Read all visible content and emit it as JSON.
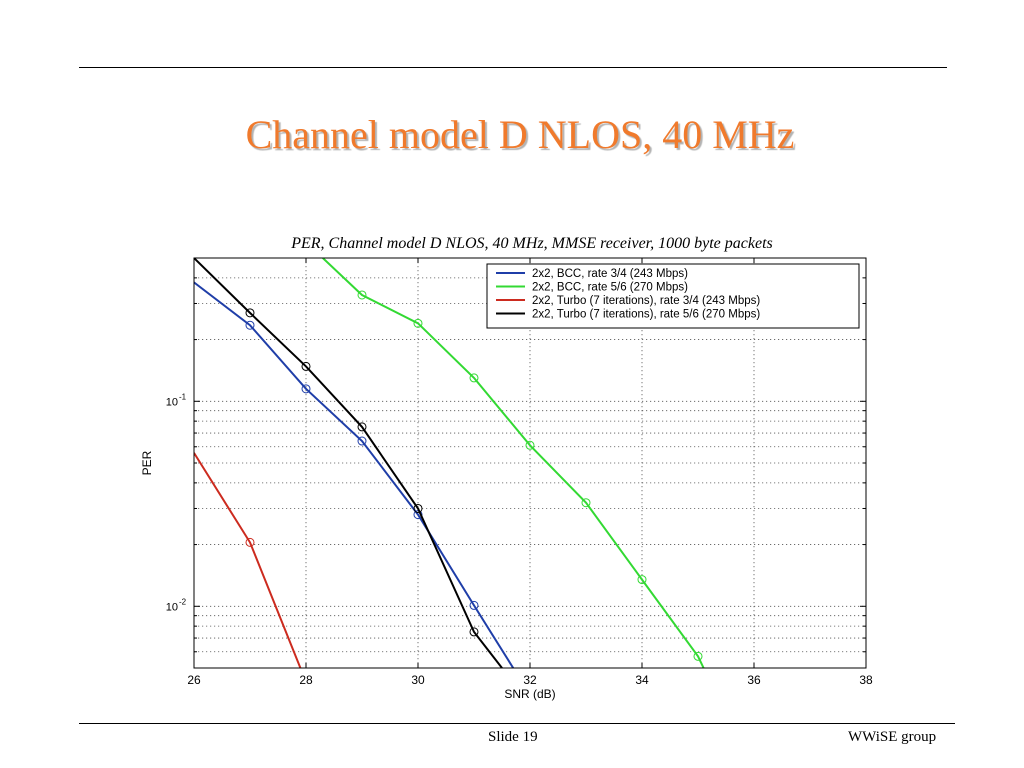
{
  "slide": {
    "title": "Channel model D NLOS, 40 MHz",
    "number_label": "Slide 19",
    "footer_right": "WWiSE group",
    "title_color": "#f07a2c"
  },
  "chart_data": {
    "type": "line",
    "title": "PER, Channel model D NLOS, 40 MHz, MMSE receiver, 1000 byte packets",
    "xlabel": "SNR (dB)",
    "ylabel": "PER",
    "xlim": [
      26,
      38
    ],
    "ylim": [
      0.005,
      0.5
    ],
    "yscale": "log",
    "grid": true,
    "legend_position": "top-right",
    "x_ticks": [
      "26",
      "28",
      "30",
      "32",
      "34",
      "36",
      "38"
    ],
    "y_ticks": [
      {
        "base": "10",
        "exp": "-1",
        "value": 0.1
      },
      {
        "base": "10",
        "exp": "-2",
        "value": 0.01
      }
    ],
    "series": [
      {
        "name": "2x2, BCC, rate 3/4 (243 Mbps)",
        "color": "#1f3ea8",
        "x": [
          26,
          27,
          28,
          29,
          30,
          31,
          31.7
        ],
        "y": [
          0.38,
          0.235,
          0.115,
          0.064,
          0.028,
          0.0101,
          0.005
        ]
      },
      {
        "name": "2x2, BCC, rate 5/6 (270 Mbps)",
        "color": "#33d933",
        "x": [
          28.3,
          29,
          30,
          31,
          32,
          33,
          34,
          35,
          35.1
        ],
        "y": [
          0.5,
          0.33,
          0.24,
          0.13,
          0.061,
          0.032,
          0.0135,
          0.0057,
          0.005
        ]
      },
      {
        "name": "2x2, Turbo (7 iterations), rate 3/4 (243 Mbps)",
        "color": "#cc2b1f",
        "x": [
          26,
          27,
          27.9
        ],
        "y": [
          0.056,
          0.0205,
          0.005
        ]
      },
      {
        "name": "2x2, Turbo (7 iterations), rate 5/6 (270 Mbps)",
        "color": "#000000",
        "x": [
          26,
          27,
          28,
          29,
          30,
          31,
          31.5
        ],
        "y": [
          0.5,
          0.27,
          0.148,
          0.075,
          0.03,
          0.0075,
          0.005
        ]
      }
    ]
  }
}
